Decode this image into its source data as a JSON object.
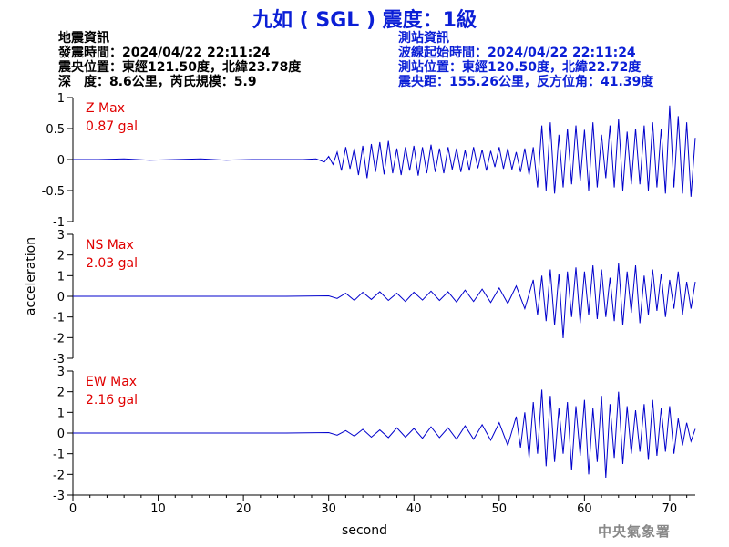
{
  "title": "九如 ( SGL ) 震度：1級",
  "quake_info": {
    "heading": "地震資訊",
    "time": "發震時間：2024/04/22 22:11:24",
    "epicenter": "震央位置：東經121.50度，北緯23.78度",
    "depth_magnitude": "深　度：8.6公里，芮氏規模：5.9"
  },
  "station_info": {
    "heading": "測站資訊",
    "arrival": "波線起始時間：2024/04/22 22:11:24",
    "location": "測站位置：東經120.50度，北緯22.72度",
    "distance": "震央距：155.26公里，反方位角：41.39度"
  },
  "agency": "中央氣象署",
  "colors": {
    "title": "#0b1fd6",
    "trace": "#0000cc",
    "max_label": "#e00000",
    "axis": "#000000"
  },
  "chart_data": {
    "type": "line",
    "xlabel": "second",
    "ylabel": "acceleration",
    "xlim": [
      0,
      73
    ],
    "xticks": [
      0,
      10,
      20,
      30,
      40,
      50,
      60,
      70
    ],
    "panels": [
      {
        "name": "Z",
        "max_label": "Z Max",
        "max_value": "0.87 gal",
        "ylim": [
          -1,
          1
        ],
        "yticks": [
          1,
          0.5,
          0,
          -0.5,
          -1
        ],
        "ytick_labels": [
          "1",
          "0.5",
          "0",
          "-0.5",
          "-1"
        ],
        "series": [
          {
            "x": [
              0,
              3,
              6,
              9,
              12,
              15,
              18,
              21,
              24,
              27,
              28.5,
              29.5,
              30,
              30.5,
              31,
              31.5,
              32,
              32.5,
              33,
              33.5,
              34,
              34.5,
              35,
              35.5,
              36,
              36.5,
              37,
              37.5,
              38,
              38.5,
              39,
              39.5,
              40,
              40.5,
              41,
              41.5,
              42,
              42.5,
              43,
              43.5,
              44,
              44.5,
              45,
              45.5,
              46,
              46.5,
              47,
              47.5,
              48,
              48.5,
              49,
              49.5,
              50,
              50.5,
              51,
              51.5,
              52,
              52.5,
              53,
              53.5,
              54,
              54.5,
              55,
              55.5,
              56,
              56.5,
              57,
              57.5,
              58,
              58.5,
              59,
              59.5,
              60,
              60.5,
              61,
              61.5,
              62,
              62.5,
              63,
              63.5,
              64,
              64.5,
              65,
              65.5,
              66,
              66.5,
              67,
              67.5,
              68,
              68.5,
              69,
              69.5,
              70,
              70.5,
              71,
              71.5,
              72,
              72.5,
              73
            ],
            "y": [
              0,
              0,
              0.01,
              -0.01,
              0,
              0.01,
              -0.01,
              0,
              0,
              0,
              0.01,
              -0.04,
              0.05,
              -0.08,
              0.12,
              -0.18,
              0.2,
              -0.15,
              0.18,
              -0.25,
              0.22,
              -0.3,
              0.25,
              -0.2,
              0.28,
              -0.24,
              0.3,
              -0.22,
              0.18,
              -0.25,
              0.2,
              -0.18,
              0.22,
              -0.26,
              0.2,
              -0.22,
              0.24,
              -0.2,
              0.18,
              -0.22,
              0.2,
              -0.16,
              0.18,
              -0.2,
              0.15,
              -0.18,
              0.2,
              -0.14,
              0.16,
              -0.18,
              0.14,
              -0.12,
              0.2,
              -0.15,
              0.18,
              -0.16,
              0.12,
              -0.2,
              0.18,
              -0.25,
              0.2,
              -0.45,
              0.55,
              -0.5,
              0.6,
              -0.55,
              0.4,
              -0.45,
              0.5,
              -0.4,
              0.55,
              -0.35,
              0.48,
              -0.5,
              0.6,
              -0.45,
              0.4,
              -0.3,
              0.55,
              -0.45,
              0.65,
              -0.5,
              0.45,
              -0.4,
              0.5,
              -0.4,
              0.55,
              -0.5,
              0.6,
              -0.45,
              0.5,
              -0.55,
              0.87,
              -0.45,
              0.7,
              -0.55,
              0.6,
              -0.6,
              0.35
            ]
          }
        ]
      },
      {
        "name": "NS",
        "max_label": "NS Max",
        "max_value": "2.03 gal",
        "ylim": [
          -3,
          3
        ],
        "yticks": [
          3,
          2,
          1,
          0,
          -1,
          -2,
          -3
        ],
        "ytick_labels": [
          "3",
          "2",
          "1",
          "0",
          "-1",
          "-2",
          "-3"
        ],
        "series": [
          {
            "x": [
              0,
              5,
              10,
              15,
              20,
              25,
              30,
              31,
              32,
              33,
              34,
              35,
              36,
              37,
              38,
              39,
              40,
              41,
              42,
              43,
              44,
              45,
              46,
              47,
              48,
              49,
              50,
              51,
              52,
              53,
              54,
              54.5,
              55,
              55.5,
              56,
              56.5,
              57,
              57.5,
              58,
              58.5,
              59,
              59.5,
              60,
              60.5,
              61,
              61.5,
              62,
              62.5,
              63,
              63.5,
              64,
              64.5,
              65,
              65.5,
              66,
              66.5,
              67,
              67.5,
              68,
              68.5,
              69,
              69.5,
              70,
              70.5,
              71,
              71.5,
              72,
              72.5,
              73
            ],
            "y": [
              0,
              0,
              0,
              0,
              0,
              0,
              0.02,
              -0.1,
              0.15,
              -0.2,
              0.2,
              -0.15,
              0.22,
              -0.2,
              0.15,
              -0.25,
              0.2,
              -0.18,
              0.25,
              -0.2,
              0.22,
              -0.28,
              0.3,
              -0.25,
              0.35,
              -0.3,
              0.4,
              -0.35,
              0.5,
              -0.6,
              0.8,
              -0.9,
              1.0,
              -1.2,
              1.3,
              -1.4,
              1.1,
              -2.03,
              1.2,
              -1.0,
              1.4,
              -1.3,
              1.2,
              -0.9,
              1.5,
              -1.1,
              1.3,
              -1.0,
              0.9,
              -1.2,
              1.6,
              -1.4,
              1.2,
              -0.8,
              1.5,
              -1.3,
              1.0,
              -0.9,
              1.3,
              -0.7,
              1.1,
              -1.0,
              0.8,
              -0.6,
              1.2,
              -0.9,
              0.7,
              -0.6,
              0.7
            ]
          }
        ]
      },
      {
        "name": "EW",
        "max_label": "EW Max",
        "max_value": "2.16 gal",
        "ylim": [
          -3,
          3
        ],
        "yticks": [
          3,
          2,
          1,
          0,
          -1,
          -2,
          -3
        ],
        "ytick_labels": [
          "3",
          "2",
          "1",
          "0",
          "-1",
          "-2",
          "-3"
        ],
        "series": [
          {
            "x": [
              0,
              5,
              10,
              15,
              20,
              25,
              30,
              31,
              32,
              33,
              34,
              35,
              36,
              37,
              38,
              39,
              40,
              41,
              42,
              43,
              44,
              45,
              46,
              47,
              48,
              49,
              50,
              51,
              52,
              52.5,
              53,
              53.5,
              54,
              54.5,
              55,
              55.5,
              56,
              56.5,
              57,
              57.5,
              58,
              58.5,
              59,
              59.5,
              60,
              60.5,
              61,
              61.5,
              62,
              62.5,
              63,
              63.5,
              64,
              64.5,
              65,
              65.5,
              66,
              66.5,
              67,
              67.5,
              68,
              68.5,
              69,
              69.5,
              70,
              70.5,
              71,
              71.5,
              72,
              72.5,
              73
            ],
            "y": [
              0,
              0,
              0,
              0,
              0,
              0,
              0.02,
              -0.1,
              0.12,
              -0.15,
              0.18,
              -0.2,
              0.15,
              -0.22,
              0.25,
              -0.2,
              0.22,
              -0.25,
              0.3,
              -0.22,
              0.25,
              -0.3,
              0.35,
              -0.3,
              0.4,
              -0.35,
              0.5,
              -0.6,
              0.8,
              -0.7,
              1.0,
              -1.2,
              1.5,
              -1.0,
              2.1,
              -1.6,
              1.8,
              -1.4,
              1.2,
              -1.0,
              1.5,
              -1.8,
              1.3,
              -1.1,
              1.6,
              -2.0,
              1.2,
              -1.4,
              1.8,
              -2.16,
              1.4,
              -1.2,
              2.0,
              -1.5,
              1.3,
              -1.0,
              1.1,
              -0.9,
              1.4,
              -1.3,
              1.6,
              -1.1,
              1.2,
              -0.9,
              1.3,
              -1.0,
              0.7,
              -0.6,
              0.5,
              -0.4,
              0.2
            ]
          }
        ]
      }
    ]
  }
}
